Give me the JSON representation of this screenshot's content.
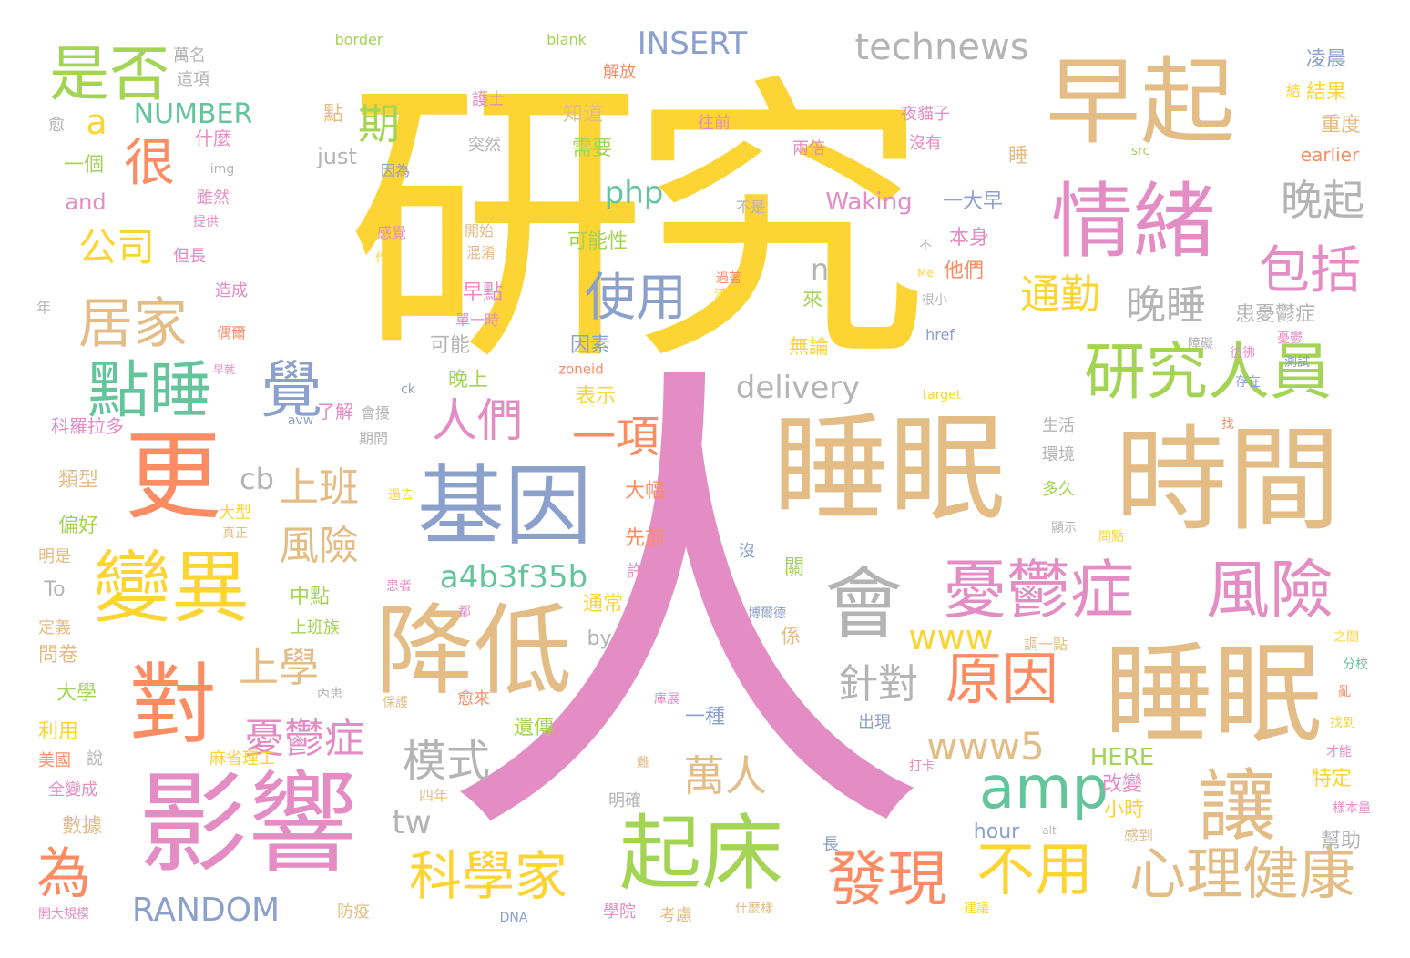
{
  "words": [
    {
      "text": "研究",
      "color": "#fcd434"
    },
    {
      "text": "人",
      "color": "#e48cc4"
    },
    {
      "text": "睡眠",
      "color": "#e4bd86"
    },
    {
      "text": "時間",
      "color": "#e4bd86"
    },
    {
      "text": "睡眠",
      "color": "#e4bd86"
    },
    {
      "text": "早起",
      "color": "#e4bd86"
    },
    {
      "text": "情緒",
      "color": "#e48cc4"
    },
    {
      "text": "基因",
      "color": "#8ca0cc"
    },
    {
      "text": "降低",
      "color": "#e4bd86"
    },
    {
      "text": "影響",
      "color": "#e48cc4"
    },
    {
      "text": "更",
      "color": "#fc8c64"
    },
    {
      "text": "對",
      "color": "#fc8c64"
    },
    {
      "text": "變異",
      "color": "#fcd434"
    },
    {
      "text": "起床",
      "color": "#a4d454"
    },
    {
      "text": "讓",
      "color": "#e4bd86"
    },
    {
      "text": "會",
      "color": "#b4b4b4"
    },
    {
      "text": "憂鬱症",
      "color": "#e48cc4"
    },
    {
      "text": "風險",
      "color": "#e48cc4"
    },
    {
      "text": "研究人員",
      "color": "#a4d454"
    },
    {
      "text": "點睡",
      "color": "#64c49c"
    },
    {
      "text": "覺",
      "color": "#8ca0cc"
    },
    {
      "text": "是否",
      "color": "#a4d454"
    },
    {
      "text": "心理健康",
      "color": "#e4bd86"
    },
    {
      "text": "發現",
      "color": "#fc8c64"
    },
    {
      "text": "不用",
      "color": "#fcd434"
    },
    {
      "text": "原因",
      "color": "#fc8c64"
    },
    {
      "text": "amp",
      "color": "#64c49c"
    },
    {
      "text": "科學家",
      "color": "#fcd434"
    },
    {
      "text": "居家",
      "color": "#e4bd86"
    },
    {
      "text": "很",
      "color": "#fc8c64"
    },
    {
      "text": "technews",
      "color": "#b4b4b4"
    },
    {
      "text": "使用",
      "color": "#8ca0cc"
    },
    {
      "text": "包括",
      "color": "#e48cc4"
    },
    {
      "text": "晚起",
      "color": "#b4b4b4"
    },
    {
      "text": "晚睡",
      "color": "#b4b4b4"
    },
    {
      "text": "通勤",
      "color": "#fcd434"
    },
    {
      "text": "人們",
      "color": "#e48cc4"
    },
    {
      "text": "一項",
      "color": "#fc8c64"
    },
    {
      "text": "為",
      "color": "#fc8c64"
    },
    {
      "text": "上班",
      "color": "#e4bd86"
    },
    {
      "text": "風險",
      "color": "#e4bd86"
    },
    {
      "text": "上學",
      "color": "#e4bd86"
    },
    {
      "text": "憂鬱症",
      "color": "#e48cc4"
    },
    {
      "text": "模式",
      "color": "#b4b4b4"
    },
    {
      "text": "萬人",
      "color": "#e4bd86"
    },
    {
      "text": "針對",
      "color": "#b4b4b4"
    },
    {
      "text": "www5",
      "color": "#e4bd86"
    },
    {
      "text": "www",
      "color": "#fcd434"
    },
    {
      "text": "delivery",
      "color": "#b4b4b4"
    },
    {
      "text": "a4b3f35b",
      "color": "#64c49c"
    },
    {
      "text": "RANDOM",
      "color": "#8ca0cc"
    },
    {
      "text": "INSERT",
      "color": "#8ca0cc"
    },
    {
      "text": "NUMBER",
      "color": "#64c49c"
    },
    {
      "text": "公司",
      "color": "#fcd434"
    },
    {
      "text": "期",
      "color": "#a4d454"
    },
    {
      "text": "php",
      "color": "#64c49c"
    },
    {
      "text": "a",
      "color": "#fcd434"
    },
    {
      "text": "cb",
      "color": "#b4b4b4"
    },
    {
      "text": "tw",
      "color": "#b4b4b4"
    },
    {
      "text": "n",
      "color": "#b4b4b4"
    },
    {
      "text": "Waking",
      "color": "#e48cc4"
    },
    {
      "text": "HERE",
      "color": "#a4d454"
    },
    {
      "text": "earlier",
      "color": "#fc8c64"
    },
    {
      "text": "just",
      "color": "#b4b4b4"
    },
    {
      "text": "and",
      "color": "#e48cc4"
    },
    {
      "text": "by",
      "color": "#b4b4b4"
    },
    {
      "text": "To",
      "color": "#b4b4b4"
    },
    {
      "text": "hour",
      "color": "#8ca0cc"
    },
    {
      "text": "border",
      "color": "#a4d454"
    },
    {
      "text": "blank",
      "color": "#a4d454"
    },
    {
      "text": "img",
      "color": "#b4b4b4"
    },
    {
      "text": "src",
      "color": "#a4d454"
    },
    {
      "text": "href",
      "color": "#8ca0cc"
    },
    {
      "text": "zoneid",
      "color": "#fc8c64"
    },
    {
      "text": "target",
      "color": "#fcd434"
    },
    {
      "text": "ck",
      "color": "#8ca0cc"
    },
    {
      "text": "avw",
      "color": "#8ca0cc"
    },
    {
      "text": "alt",
      "color": "#b4b4b4"
    },
    {
      "text": "DNA",
      "color": "#8ca0cc"
    },
    {
      "text": "Me",
      "color": "#fcd434"
    },
    {
      "text": "一大早",
      "color": "#8ca0cc"
    },
    {
      "text": "本身",
      "color": "#e48cc4"
    },
    {
      "text": "他們",
      "color": "#fc8c64"
    },
    {
      "text": "來",
      "color": "#a4d454"
    },
    {
      "text": "無論",
      "color": "#fcd434"
    },
    {
      "text": "因素",
      "color": "#8ca0cc"
    },
    {
      "text": "早點",
      "color": "#e48cc4"
    },
    {
      "text": "可能性",
      "color": "#a4d454"
    },
    {
      "text": "需要",
      "color": "#a4d454"
    },
    {
      "text": "知道",
      "color": "#e4bd86"
    },
    {
      "text": "點",
      "color": "#e4bd86"
    },
    {
      "text": "可能",
      "color": "#b4b4b4"
    },
    {
      "text": "晚上",
      "color": "#a4d454"
    },
    {
      "text": "表示",
      "color": "#fcd434"
    },
    {
      "text": "一種",
      "color": "#8ca0cc"
    },
    {
      "text": "遺傳",
      "color": "#a4d454"
    },
    {
      "text": "改變",
      "color": "#e48cc4"
    },
    {
      "text": "小時",
      "color": "#fcd434"
    },
    {
      "text": "特定",
      "color": "#fcd434"
    },
    {
      "text": "幫助",
      "color": "#b4b4b4"
    },
    {
      "text": "重度",
      "color": "#e4bd86"
    },
    {
      "text": "結果",
      "color": "#fcd434"
    },
    {
      "text": "凌晨",
      "color": "#8ca0cc"
    },
    {
      "text": "患憂鬱症",
      "color": "#b4b4b4"
    },
    {
      "text": "睡",
      "color": "#e4bd86"
    },
    {
      "text": "一個",
      "color": "#a4d454"
    },
    {
      "text": "什麼",
      "color": "#e48cc4"
    },
    {
      "text": "愈",
      "color": "#b4b4b4"
    },
    {
      "text": "萬名",
      "color": "#b4b4b4"
    },
    {
      "text": "這項",
      "color": "#b4b4b4"
    },
    {
      "text": "雖然",
      "color": "#e48cc4"
    },
    {
      "text": "提供",
      "color": "#e48cc4"
    },
    {
      "text": "但長",
      "color": "#e48cc4"
    },
    {
      "text": "年",
      "color": "#b4b4b4"
    },
    {
      "text": "造成",
      "color": "#e48cc4"
    },
    {
      "text": "偶爾",
      "color": "#fc8c64"
    },
    {
      "text": "早就",
      "color": "#e48cc4"
    },
    {
      "text": "科羅拉多",
      "color": "#e48cc4"
    },
    {
      "text": "了解",
      "color": "#e48cc4"
    },
    {
      "text": "會擾",
      "color": "#b4b4b4"
    },
    {
      "text": "期間",
      "color": "#b4b4b4"
    },
    {
      "text": "類型",
      "color": "#e4bd86"
    },
    {
      "text": "偏好",
      "color": "#a4d454"
    },
    {
      "text": "明是",
      "color": "#e4bd86"
    },
    {
      "text": "定義",
      "color": "#e4bd86"
    },
    {
      "text": "問卷",
      "color": "#e4bd86"
    },
    {
      "text": "大學",
      "color": "#a4d454"
    },
    {
      "text": "利用",
      "color": "#fcd434"
    },
    {
      "text": "美國",
      "color": "#fc8c64"
    },
    {
      "text": "全變成",
      "color": "#e48cc4"
    },
    {
      "text": "數據",
      "color": "#e4bd86"
    },
    {
      "text": "說",
      "color": "#b4b4b4"
    },
    {
      "text": "開大規模",
      "color": "#e48cc4"
    },
    {
      "text": "防疫",
      "color": "#e4bd86"
    },
    {
      "text": "麻省理工",
      "color": "#fcd434"
    },
    {
      "text": "大型",
      "color": "#fcd434"
    },
    {
      "text": "真正",
      "color": "#e4bd86"
    },
    {
      "text": "過去",
      "color": "#fcd434"
    },
    {
      "text": "中點",
      "color": "#a4d454"
    },
    {
      "text": "上班族",
      "color": "#a4d454"
    },
    {
      "text": "丙患",
      "color": "#b4b4b4"
    },
    {
      "text": "保護",
      "color": "#e4bd86"
    },
    {
      "text": "患者",
      "color": "#e48cc4"
    },
    {
      "text": "都",
      "color": "#e48cc4"
    },
    {
      "text": "四年",
      "color": "#e4bd86"
    },
    {
      "text": "愈來",
      "color": "#fc8c64"
    },
    {
      "text": "明確",
      "color": "#b4b4b4"
    },
    {
      "text": "學院",
      "color": "#e48cc4"
    },
    {
      "text": "考慮",
      "color": "#e4bd86"
    },
    {
      "text": "難",
      "color": "#e4bd86"
    },
    {
      "text": "長",
      "color": "#8ca0cc"
    },
    {
      "text": "什麼樣",
      "color": "#e4bd86"
    },
    {
      "text": "打卡",
      "color": "#e48cc4"
    },
    {
      "text": "出現",
      "color": "#8ca0cc"
    },
    {
      "text": "庫展",
      "color": "#e48cc4"
    },
    {
      "text": "博爾德",
      "color": "#8ca0cc"
    },
    {
      "text": "許多",
      "color": "#e48cc4"
    },
    {
      "text": "先前",
      "color": "#fc8c64"
    },
    {
      "text": "大幅",
      "color": "#fc8c64"
    },
    {
      "text": "通常",
      "color": "#fcd434"
    },
    {
      "text": "關",
      "color": "#a4d454"
    },
    {
      "text": "係",
      "color": "#e4bd86"
    },
    {
      "text": "沒",
      "color": "#8ca0cc"
    },
    {
      "text": "調一點",
      "color": "#e4bd86"
    },
    {
      "text": "生活",
      "color": "#b4b4b4"
    },
    {
      "text": "環境",
      "color": "#b4b4b4"
    },
    {
      "text": "多久",
      "color": "#a4d454"
    },
    {
      "text": "顯示",
      "color": "#b4b4b4"
    },
    {
      "text": "問點",
      "color": "#fcd434"
    },
    {
      "text": "找",
      "color": "#fc8c64"
    },
    {
      "text": "存在",
      "color": "#8ca0cc"
    },
    {
      "text": "彷彿",
      "color": "#e48cc4"
    },
    {
      "text": "測試",
      "color": "#8ca0cc"
    },
    {
      "text": "憂鬱",
      "color": "#e48cc4"
    },
    {
      "text": "障礙",
      "color": "#b4b4b4"
    },
    {
      "text": "之間",
      "color": "#fcd434"
    },
    {
      "text": "分校",
      "color": "#64c49c"
    },
    {
      "text": "亂",
      "color": "#fc8c64"
    },
    {
      "text": "找到",
      "color": "#fcd434"
    },
    {
      "text": "才能",
      "color": "#e48cc4"
    },
    {
      "text": "樣本量",
      "color": "#e48cc4"
    },
    {
      "text": "感到",
      "color": "#e4bd86"
    },
    {
      "text": "建議",
      "color": "#fcd434"
    },
    {
      "text": "過著",
      "color": "#fc8c64"
    },
    {
      "text": "滿足",
      "color": "#fcd434"
    },
    {
      "text": "不是",
      "color": "#b4b4b4"
    },
    {
      "text": "不",
      "color": "#b4b4b4"
    },
    {
      "text": "很小",
      "color": "#b4b4b4"
    },
    {
      "text": "單一時",
      "color": "#e48cc4"
    },
    {
      "text": "混淆",
      "color": "#e4bd86"
    },
    {
      "text": "開始",
      "color": "#e4bd86"
    },
    {
      "text": "作用",
      "color": "#fcd434"
    },
    {
      "text": "感覺",
      "color": "#e48cc4"
    },
    {
      "text": "因為",
      "color": "#8ca0cc"
    },
    {
      "text": "突然",
      "color": "#b4b4b4"
    },
    {
      "text": "護士",
      "color": "#e48cc4"
    },
    {
      "text": "往前",
      "color": "#e48cc4"
    },
    {
      "text": "兩倍",
      "color": "#e48cc4"
    },
    {
      "text": "夜貓子",
      "color": "#e48cc4"
    },
    {
      "text": "沒有",
      "color": "#e48cc4"
    },
    {
      "text": "解放",
      "color": "#fc8c64"
    },
    {
      "text": "結",
      "color": "#fcd434"
    }
  ]
}
